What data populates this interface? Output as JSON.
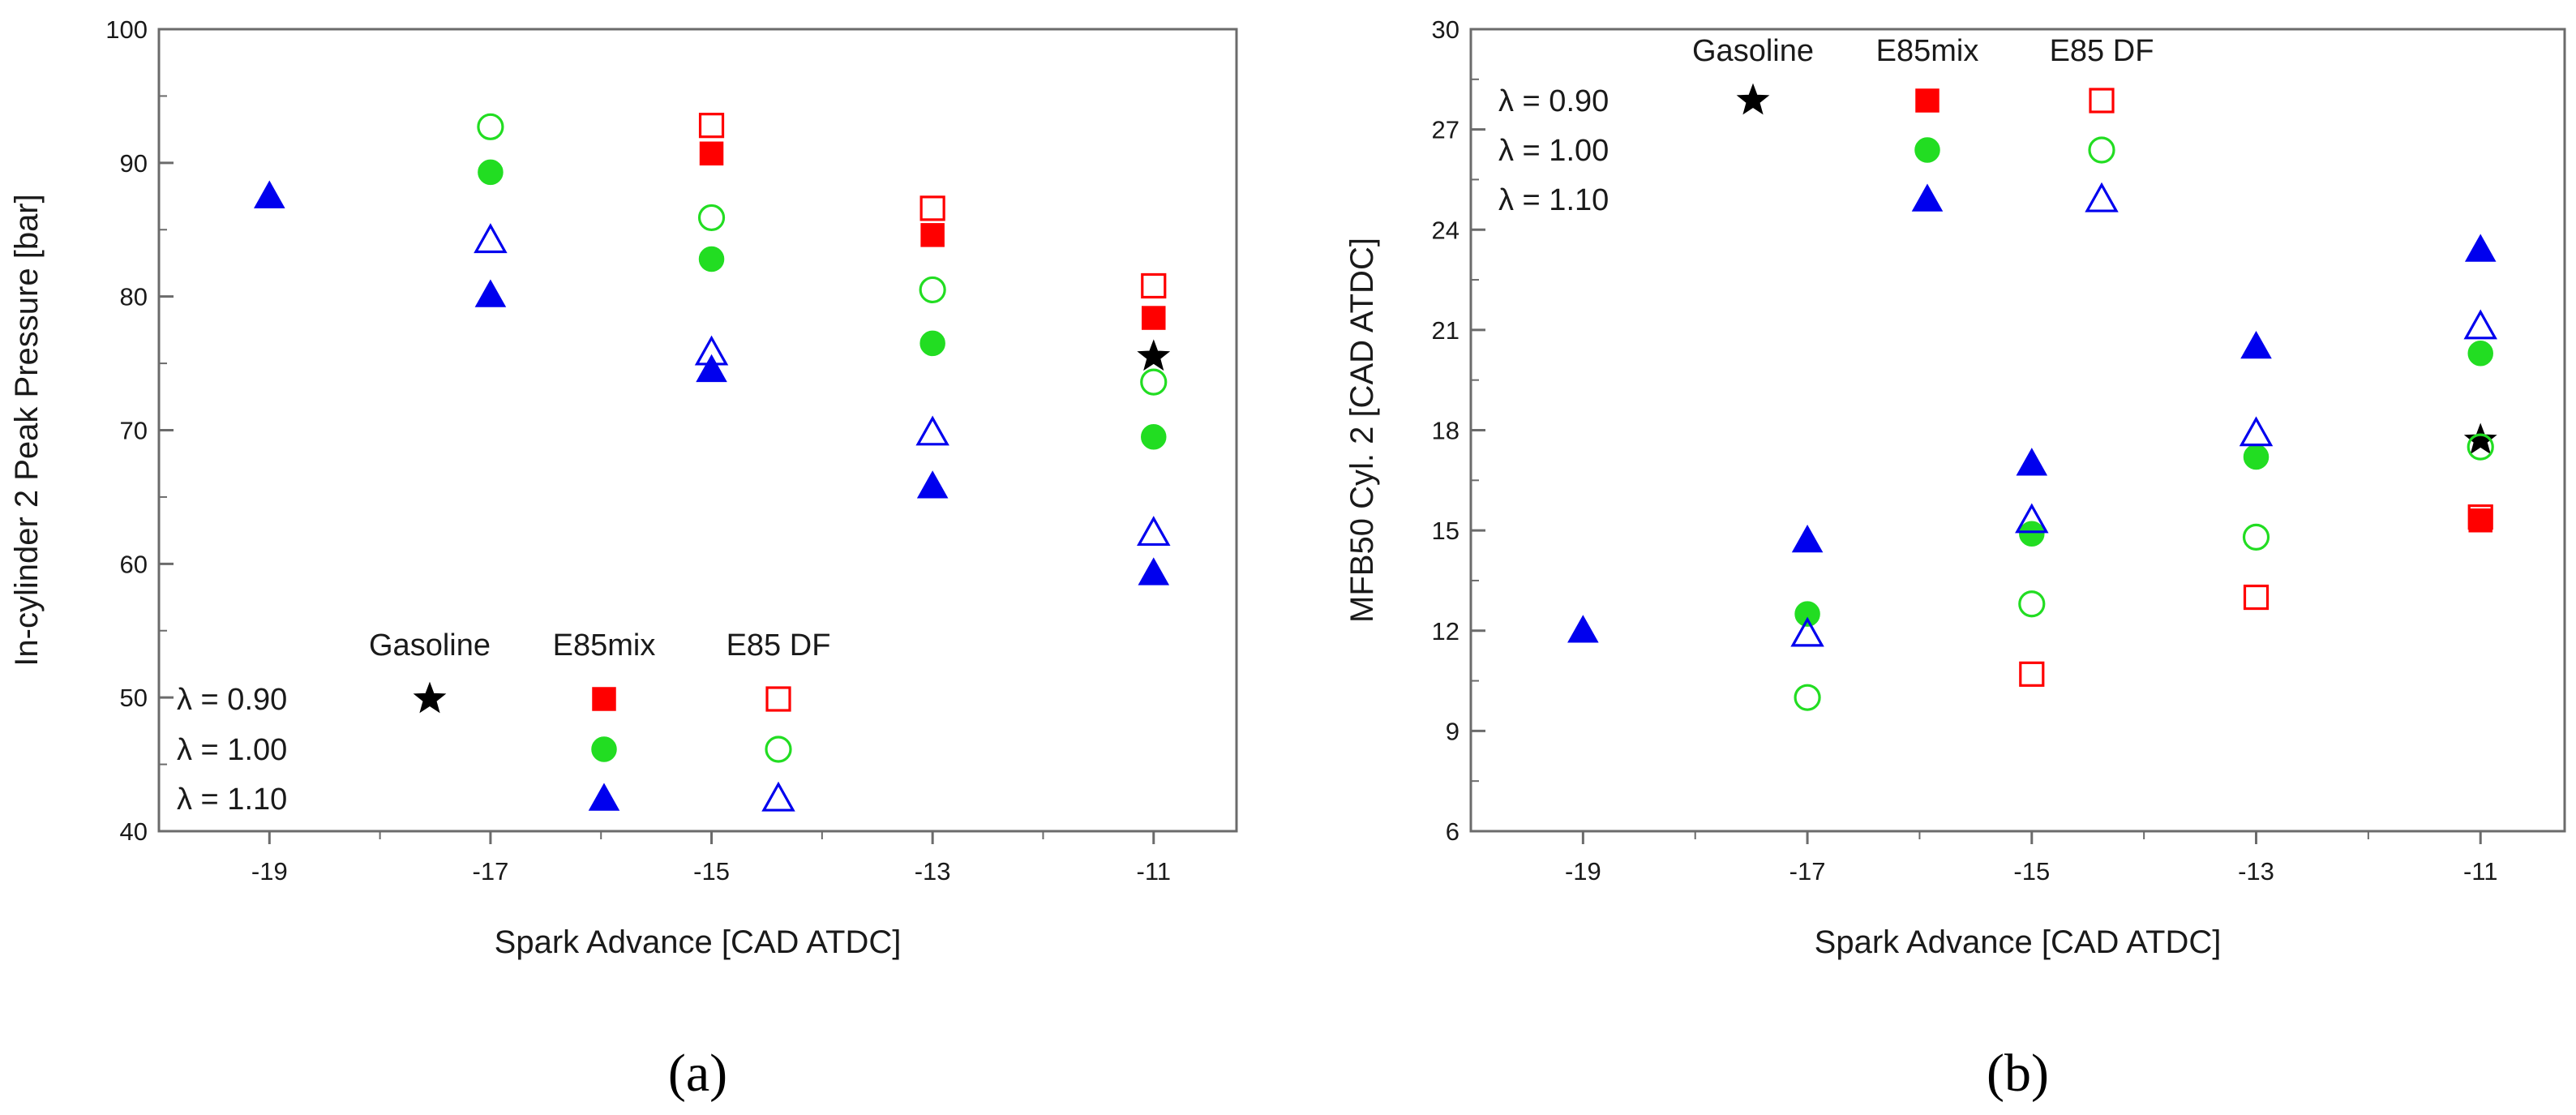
{
  "chart_data": [
    {
      "type": "scatter",
      "panel_label": "(a)",
      "xlabel": "Spark Advance [CAD ATDC]",
      "ylabel": "In-cylinder 2 Peak Pressure [bar]",
      "xlim": [
        -20,
        -10.25
      ],
      "ylim": [
        40,
        100
      ],
      "xticks": [
        -19,
        -17,
        -15,
        -13,
        -11
      ],
      "yticks": [
        40,
        50,
        60,
        70,
        80,
        90,
        100
      ],
      "grid": false,
      "legend": {
        "placement": "bottom-left",
        "column_headers": [
          "Gasoline",
          "E85mix",
          "E85 DF"
        ],
        "row_labels": [
          "λ = 0.90",
          "λ = 1.00",
          "λ = 1.10"
        ]
      },
      "series": [
        {
          "name": "Gasoline λ = 0.90",
          "fuel": "Gasoline",
          "lambda": 0.9,
          "marker": "star",
          "filled": true,
          "color": "#000000",
          "x": [
            -11
          ],
          "y": [
            75.5
          ]
        },
        {
          "name": "E85mix λ = 0.90",
          "fuel": "E85mix",
          "lambda": 0.9,
          "marker": "square",
          "filled": true,
          "color": "#ff0000",
          "x": [
            -15,
            -13,
            -11
          ],
          "y": [
            90.7,
            84.6,
            78.4
          ]
        },
        {
          "name": "E85mix λ = 1.00",
          "fuel": "E85mix",
          "lambda": 1.0,
          "marker": "circle",
          "filled": true,
          "color": "#22dd22",
          "x": [
            -17,
            -15,
            -13,
            -11
          ],
          "y": [
            89.3,
            82.8,
            76.5,
            69.5
          ]
        },
        {
          "name": "E85mix λ = 1.10",
          "fuel": "E85mix",
          "lambda": 1.1,
          "marker": "triangle",
          "filled": true,
          "color": "#0000ee",
          "x": [
            -19,
            -17,
            -15,
            -13,
            -11
          ],
          "y": [
            87.5,
            80.1,
            74.5,
            65.8,
            59.3
          ]
        },
        {
          "name": "E85 DF λ = 0.90",
          "fuel": "E85 DF",
          "lambda": 0.9,
          "marker": "square",
          "filled": false,
          "color": "#ff0000",
          "x": [
            -15,
            -13,
            -11
          ],
          "y": [
            92.8,
            86.6,
            80.8
          ]
        },
        {
          "name": "E85 DF λ = 1.00",
          "fuel": "E85 DF",
          "lambda": 1.0,
          "marker": "circle",
          "filled": false,
          "color": "#22dd22",
          "x": [
            -17,
            -15,
            -13,
            -11
          ],
          "y": [
            92.7,
            85.9,
            80.5,
            73.6
          ]
        },
        {
          "name": "E85 DF λ = 1.10",
          "fuel": "E85 DF",
          "lambda": 1.1,
          "marker": "triangle",
          "filled": false,
          "color": "#0000ee",
          "x": [
            -17,
            -15,
            -13,
            -11
          ],
          "y": [
            84.2,
            75.8,
            69.8,
            62.3
          ]
        }
      ]
    },
    {
      "type": "scatter",
      "panel_label": "(b)",
      "xlabel": "Spark Advance [CAD ATDC]",
      "ylabel": "MFB50 Cyl. 2 [CAD ATDC]",
      "xlim": [
        -20,
        -10.25
      ],
      "ylim": [
        6,
        30
      ],
      "xticks": [
        -19,
        -17,
        -15,
        -13,
        -11
      ],
      "yticks": [
        6,
        9,
        12,
        15,
        18,
        21,
        24,
        27,
        30
      ],
      "grid": false,
      "legend": {
        "placement": "top-left",
        "column_headers": [
          "Gasoline",
          "E85mix",
          "E85 DF"
        ],
        "row_labels": [
          "λ = 0.90",
          "λ = 1.00",
          "λ = 1.10"
        ]
      },
      "series": [
        {
          "name": "Gasoline λ = 0.90",
          "fuel": "Gasoline",
          "lambda": 0.9,
          "marker": "star",
          "filled": true,
          "color": "#000000",
          "x": [
            -11
          ],
          "y": [
            17.7
          ]
        },
        {
          "name": "E85mix λ = 0.90",
          "fuel": "E85mix",
          "lambda": 0.9,
          "marker": "square",
          "filled": true,
          "color": "#ff0000",
          "x": [
            -11
          ],
          "y": [
            15.3
          ]
        },
        {
          "name": "E85mix λ = 1.00",
          "fuel": "E85mix",
          "lambda": 1.0,
          "marker": "circle",
          "filled": true,
          "color": "#22dd22",
          "x": [
            -17,
            -15,
            -13,
            -11
          ],
          "y": [
            12.5,
            14.9,
            17.2,
            20.3
          ]
        },
        {
          "name": "E85mix λ = 1.10",
          "fuel": "E85mix",
          "lambda": 1.1,
          "marker": "triangle",
          "filled": true,
          "color": "#0000ee",
          "x": [
            -19,
            -17,
            -15,
            -13,
            -11
          ],
          "y": [
            12.0,
            14.7,
            17.0,
            20.5,
            23.4
          ]
        },
        {
          "name": "E85 DF λ = 0.90",
          "fuel": "E85 DF",
          "lambda": 0.9,
          "marker": "square",
          "filled": false,
          "color": "#ff0000",
          "x": [
            -15,
            -13,
            -11
          ],
          "y": [
            10.7,
            13.0,
            15.4
          ]
        },
        {
          "name": "E85 DF λ = 1.00",
          "fuel": "E85 DF",
          "lambda": 1.0,
          "marker": "circle",
          "filled": false,
          "color": "#22dd22",
          "x": [
            -17,
            -15,
            -13,
            -11
          ],
          "y": [
            10.0,
            12.8,
            14.8,
            17.5
          ]
        },
        {
          "name": "E85 DF λ = 1.10",
          "fuel": "E85 DF",
          "lambda": 1.1,
          "marker": "triangle",
          "filled": false,
          "color": "#0000ee",
          "x": [
            -17,
            -15,
            -13,
            -11
          ],
          "y": [
            11.9,
            15.3,
            17.9,
            21.1
          ]
        }
      ]
    }
  ]
}
